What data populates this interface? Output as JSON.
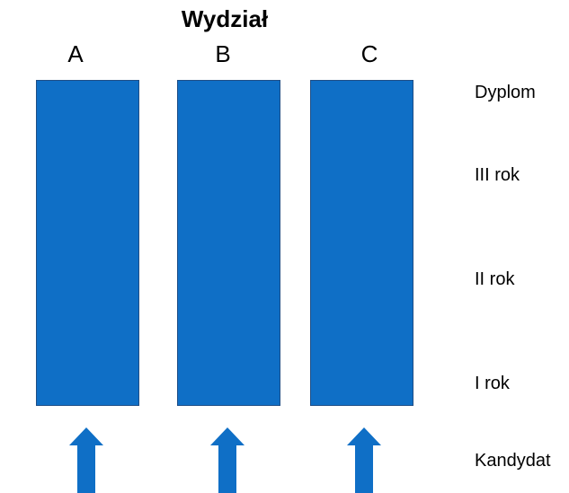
{
  "title": "Wydział",
  "colors": {
    "column_fill": "#0f6fc6",
    "column_border": "#1f4e86",
    "arrow_fill": "#0f6fc6"
  },
  "columns": [
    {
      "label": "A"
    },
    {
      "label": "B"
    },
    {
      "label": "C"
    }
  ],
  "levels": [
    "Dyplom",
    "III rok",
    "II rok",
    "I rok"
  ],
  "entry_label": "Kandydat",
  "arrows": [
    {
      "icon": "up-arrow-icon"
    },
    {
      "icon": "up-arrow-icon"
    },
    {
      "icon": "up-arrow-icon"
    }
  ]
}
